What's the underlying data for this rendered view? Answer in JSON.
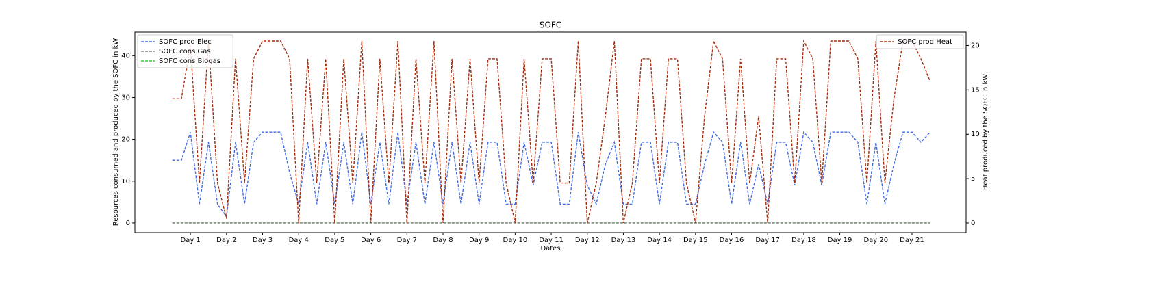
{
  "chart_data": {
    "type": "line",
    "title": "SOFC",
    "xlabel": "Dates",
    "ylabel": "Resources consumed and produced by the SOFC in kW",
    "y2label": "Heat produced by the SOFC in kW",
    "x": [
      0.5,
      0.75,
      1,
      1.25,
      1.5,
      1.75,
      2,
      2.25,
      2.5,
      2.75,
      3,
      3.25,
      3.5,
      3.75,
      4,
      4.25,
      4.5,
      4.75,
      5,
      5.25,
      5.5,
      5.75,
      6,
      6.25,
      6.5,
      6.75,
      7,
      7.25,
      7.5,
      7.75,
      8,
      8.25,
      8.5,
      8.75,
      9,
      9.25,
      9.5,
      9.75,
      10,
      10.25,
      10.5,
      10.75,
      11,
      11.25,
      11.5,
      11.75,
      12,
      12.25,
      12.5,
      12.75,
      13,
      13.25,
      13.5,
      13.75,
      14,
      14.25,
      14.5,
      14.75,
      15,
      15.25,
      15.5,
      15.75,
      16,
      16.25,
      16.5,
      16.75,
      17,
      17.25,
      17.5,
      17.75,
      18,
      18.25,
      18.5,
      18.75,
      19,
      19.25,
      19.5,
      19.75,
      20,
      20.25,
      20.5,
      20.75,
      21,
      21.25,
      21.5
    ],
    "series": [
      {
        "name": "SOFC prod Elec",
        "color": "#4169e1",
        "axis": "y",
        "values": [
          15,
          15,
          21.7,
          4.5,
          19.3,
          4.5,
          1.5,
          19.3,
          4.5,
          19.3,
          21.7,
          21.7,
          21.7,
          12,
          4.5,
          19.3,
          4.5,
          19.3,
          4.5,
          19.3,
          4.5,
          21.7,
          4.5,
          19.3,
          4.5,
          21.7,
          4.5,
          19.3,
          4.5,
          19.3,
          4.5,
          19.3,
          4.5,
          19.3,
          4.5,
          19.3,
          19.3,
          4.5,
          4.5,
          19.3,
          9,
          19.3,
          19.3,
          4.5,
          4.5,
          21.7,
          9,
          4.5,
          14,
          19.3,
          4.5,
          4.5,
          19.3,
          19.3,
          4.5,
          19.3,
          19.3,
          4.5,
          4.5,
          14,
          21.7,
          19.3,
          4.5,
          19.3,
          4.5,
          14,
          4.5,
          19.3,
          19.3,
          9,
          21.7,
          19.3,
          9,
          21.7,
          21.7,
          21.7,
          19.3,
          4.5,
          19.3,
          4.5,
          14,
          21.7,
          21.7,
          19.3,
          21.7
        ]
      },
      {
        "name": "SOFC cons Gas",
        "color": "#808080",
        "axis": "y",
        "values": [
          0,
          0,
          0,
          0,
          0,
          0,
          0,
          0,
          0,
          0,
          0,
          0,
          0,
          0,
          0,
          0,
          0,
          0,
          0,
          0,
          0,
          0,
          0,
          0,
          0,
          0,
          0,
          0,
          0,
          0,
          0,
          0,
          0,
          0,
          0,
          0,
          0,
          0,
          0,
          0,
          0,
          0,
          0,
          0,
          0,
          0,
          0,
          0,
          0,
          0,
          0,
          0,
          0,
          0,
          0,
          0,
          0,
          0,
          0,
          0,
          0,
          0,
          0,
          0,
          0,
          0,
          0,
          0,
          0,
          0,
          0,
          0,
          0,
          0,
          0,
          0,
          0,
          0,
          0,
          0,
          0,
          0,
          0,
          0,
          0
        ]
      },
      {
        "name": "SOFC cons Biogas",
        "color": "#32cd32",
        "axis": "y",
        "values": [
          0,
          0,
          0,
          0,
          0,
          0,
          0,
          0,
          0,
          0,
          0,
          0,
          0,
          0,
          0,
          0,
          0,
          0,
          0,
          0,
          0,
          0,
          0,
          0,
          0,
          0,
          0,
          0,
          0,
          0,
          0,
          0,
          0,
          0,
          0,
          0,
          0,
          0,
          0,
          0,
          0,
          0,
          0,
          0,
          0,
          0,
          0,
          0,
          0,
          0,
          0,
          0,
          0,
          0,
          0,
          0,
          0,
          0,
          0,
          0,
          0,
          0,
          0,
          0,
          0,
          0,
          0,
          0,
          0,
          0,
          0,
          0,
          0,
          0,
          0,
          0,
          0,
          0,
          0,
          0,
          0,
          0,
          0,
          0,
          0
        ]
      },
      {
        "name": "SOFC prod Heat",
        "color": "#a52a0a",
        "axis": "y2",
        "values": [
          14,
          14,
          20,
          4.5,
          20.5,
          4.5,
          0.5,
          18.5,
          4.5,
          18.5,
          20.5,
          20.5,
          20.5,
          18.5,
          0,
          18.5,
          4.5,
          18.5,
          0,
          18.5,
          4.5,
          20.5,
          0,
          18.5,
          4.5,
          20.5,
          0,
          18.5,
          4.5,
          20.5,
          0,
          18.5,
          4.5,
          18.5,
          4.5,
          18.5,
          18.5,
          4.5,
          0,
          18.5,
          4.5,
          18.5,
          18.5,
          4.5,
          4.5,
          20.5,
          0,
          4.5,
          12,
          20.5,
          0,
          4.5,
          18.5,
          18.5,
          4.5,
          18.5,
          18.5,
          4.5,
          0,
          12,
          20.5,
          18.5,
          4.5,
          18.5,
          4.5,
          12,
          0,
          18.5,
          18.5,
          4.5,
          20.5,
          18.5,
          4.5,
          20.5,
          20.5,
          20.5,
          18.5,
          4.5,
          20.5,
          4.5,
          14,
          20.5,
          20.5,
          18.5,
          16
        ]
      }
    ],
    "xlim": [
      -0.54,
      22.5
    ],
    "xticks": [
      {
        "value": 1,
        "label": "Day 1"
      },
      {
        "value": 2,
        "label": "Day 2"
      },
      {
        "value": 3,
        "label": "Day 3"
      },
      {
        "value": 4,
        "label": "Day 4"
      },
      {
        "value": 5,
        "label": "Day 5"
      },
      {
        "value": 6,
        "label": "Day 6"
      },
      {
        "value": 7,
        "label": "Day 7"
      },
      {
        "value": 8,
        "label": "Day 8"
      },
      {
        "value": 9,
        "label": "Day 9"
      },
      {
        "value": 10,
        "label": "Day 10"
      },
      {
        "value": 11,
        "label": "Day 11"
      },
      {
        "value": 12,
        "label": "Day 12"
      },
      {
        "value": 13,
        "label": "Day 13"
      },
      {
        "value": 14,
        "label": "Day 14"
      },
      {
        "value": 15,
        "label": "Day 15"
      },
      {
        "value": 16,
        "label": "Day 16"
      },
      {
        "value": 17,
        "label": "Day 17"
      },
      {
        "value": 18,
        "label": "Day 18"
      },
      {
        "value": 19,
        "label": "Day 19"
      },
      {
        "value": 20,
        "label": "Day 20"
      },
      {
        "value": 21,
        "label": "Day 21"
      }
    ],
    "ylim": [
      -2.3,
      45.6
    ],
    "yticks": [
      0,
      10,
      20,
      30,
      40
    ],
    "y2lim": [
      -1.08,
      21.5
    ],
    "y2ticks": [
      0,
      5,
      10,
      15,
      20
    ],
    "linestyle": "dashed",
    "legend_loc": "upper left",
    "legend2_loc": "upper right"
  }
}
